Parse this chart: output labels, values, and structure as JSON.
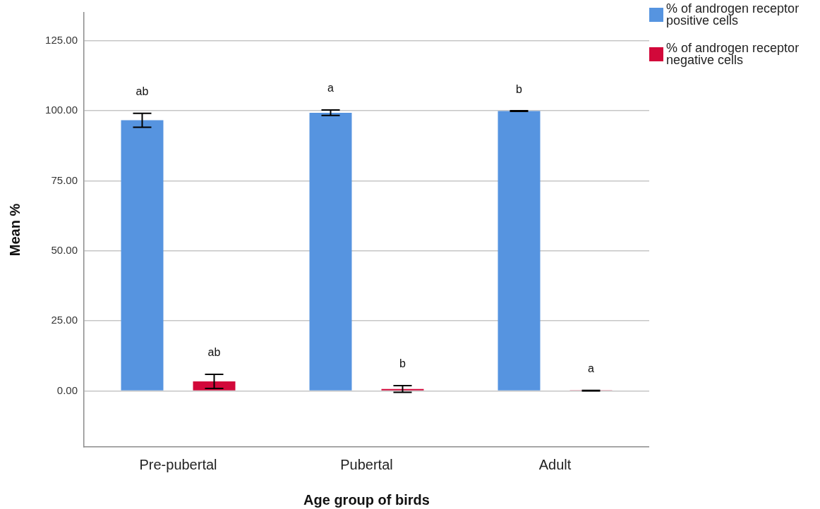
{
  "chart_data": {
    "type": "bar",
    "xlabel": "Age group of birds",
    "ylabel": "Mean %",
    "categories": [
      "Pre-pubertal",
      "Pubertal",
      "Adult"
    ],
    "series": [
      {
        "name": "% of androgen receptor positive cells",
        "color": "#5694e0",
        "values": [
          96.6,
          99.3,
          99.9
        ],
        "errors": [
          2.5,
          1.0,
          0.1
        ],
        "value_labels": [
          "ab",
          "a",
          "b"
        ]
      },
      {
        "name": "% of androgen receptor negative cells",
        "color": "#d2083a",
        "values": [
          3.4,
          0.7,
          0.1
        ],
        "errors": [
          2.5,
          1.2,
          0.1
        ],
        "value_labels": [
          "ab",
          "b",
          "a"
        ]
      }
    ],
    "ylim": [
      -20,
      135
    ],
    "yticks": [
      {
        "value": 0,
        "label": "0.00"
      },
      {
        "value": 25,
        "label": "25.00"
      },
      {
        "value": 50,
        "label": "50.00"
      },
      {
        "value": 75,
        "label": "75.00"
      },
      {
        "value": 100,
        "label": "100.00"
      },
      {
        "value": 125,
        "label": "125.00"
      }
    ],
    "grid": "y",
    "legend": "top right"
  }
}
